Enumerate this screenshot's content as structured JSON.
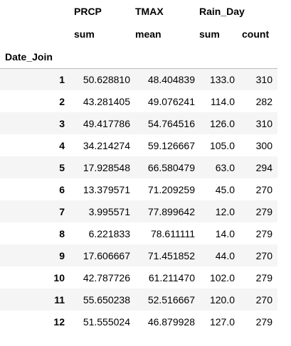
{
  "table": {
    "columns_level0": [
      "PRCP",
      "TMAX",
      "Rain_Day"
    ],
    "columns_level1": [
      "sum",
      "mean",
      "sum",
      "count"
    ],
    "index_name": "Date_Join",
    "rows": [
      {
        "index": "1",
        "prcp_sum": "50.628810",
        "tmax_mean": "48.404839",
        "rain_sum": "133.0",
        "rain_count": "310"
      },
      {
        "index": "2",
        "prcp_sum": "43.281405",
        "tmax_mean": "49.076241",
        "rain_sum": "114.0",
        "rain_count": "282"
      },
      {
        "index": "3",
        "prcp_sum": "49.417786",
        "tmax_mean": "54.764516",
        "rain_sum": "126.0",
        "rain_count": "310"
      },
      {
        "index": "4",
        "prcp_sum": "34.214274",
        "tmax_mean": "59.126667",
        "rain_sum": "105.0",
        "rain_count": "300"
      },
      {
        "index": "5",
        "prcp_sum": "17.928548",
        "tmax_mean": "66.580479",
        "rain_sum": "63.0",
        "rain_count": "294"
      },
      {
        "index": "6",
        "prcp_sum": "13.379571",
        "tmax_mean": "71.209259",
        "rain_sum": "45.0",
        "rain_count": "270"
      },
      {
        "index": "7",
        "prcp_sum": "3.995571",
        "tmax_mean": "77.899642",
        "rain_sum": "12.0",
        "rain_count": "279"
      },
      {
        "index": "8",
        "prcp_sum": "6.221833",
        "tmax_mean": "78.611111",
        "rain_sum": "14.0",
        "rain_count": "279"
      },
      {
        "index": "9",
        "prcp_sum": "17.606667",
        "tmax_mean": "71.451852",
        "rain_sum": "44.0",
        "rain_count": "270"
      },
      {
        "index": "10",
        "prcp_sum": "42.787726",
        "tmax_mean": "61.211470",
        "rain_sum": "102.0",
        "rain_count": "279"
      },
      {
        "index": "11",
        "prcp_sum": "55.650238",
        "tmax_mean": "52.516667",
        "rain_sum": "120.0",
        "rain_count": "270"
      },
      {
        "index": "12",
        "prcp_sum": "51.555024",
        "tmax_mean": "46.879928",
        "rain_sum": "127.0",
        "rain_count": "279"
      }
    ]
  }
}
